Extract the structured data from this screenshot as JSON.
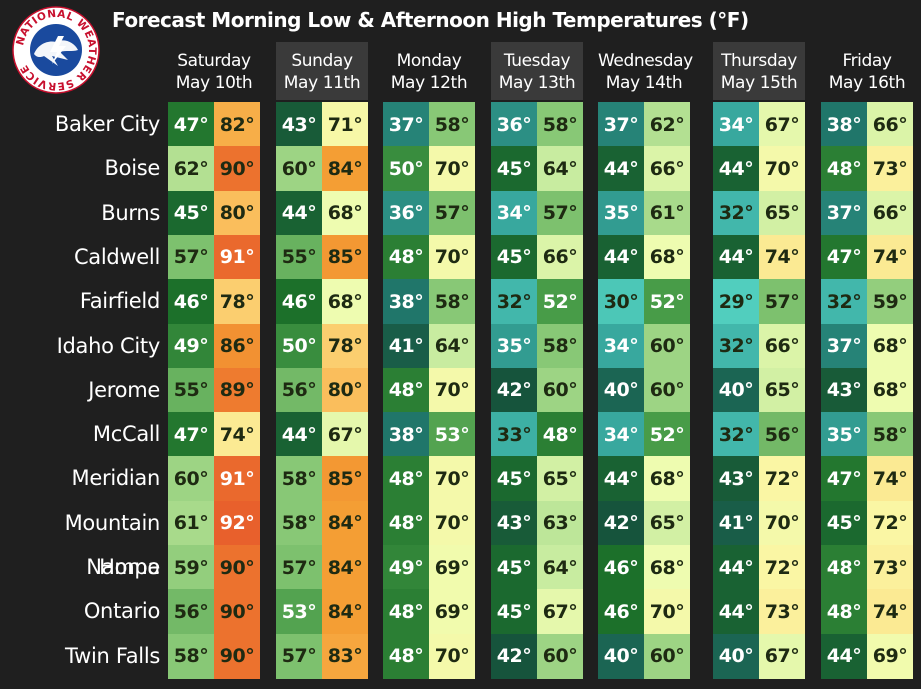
{
  "title": "Forecast Morning Low & Afternoon High Temperatures (°F)",
  "logo": {
    "ring_text": "NATIONAL WEATHER SERVICE"
  },
  "days": [
    {
      "weekday": "Saturday",
      "date": "May 10th"
    },
    {
      "weekday": "Sunday",
      "date": "May 11th"
    },
    {
      "weekday": "Monday",
      "date": "May 12th"
    },
    {
      "weekday": "Tuesday",
      "date": "May 13th"
    },
    {
      "weekday": "Wednesday",
      "date": "May 14th"
    },
    {
      "weekday": "Thursday",
      "date": "May 15th"
    },
    {
      "weekday": "Friday",
      "date": "May 16th"
    }
  ],
  "rows": [
    {
      "city": "Baker City",
      "temps": [
        [
          47,
          82
        ],
        [
          43,
          71
        ],
        [
          37,
          58
        ],
        [
          36,
          58
        ],
        [
          37,
          62
        ],
        [
          34,
          67
        ],
        [
          38,
          66
        ]
      ]
    },
    {
      "city": "Boise",
      "temps": [
        [
          62,
          90
        ],
        [
          60,
          84
        ],
        [
          50,
          70
        ],
        [
          45,
          64
        ],
        [
          44,
          66
        ],
        [
          44,
          70
        ],
        [
          48,
          73
        ]
      ]
    },
    {
      "city": "Burns",
      "temps": [
        [
          45,
          80
        ],
        [
          44,
          68
        ],
        [
          36,
          57
        ],
        [
          34,
          57
        ],
        [
          35,
          61
        ],
        [
          32,
          65
        ],
        [
          37,
          66
        ]
      ]
    },
    {
      "city": "Caldwell",
      "temps": [
        [
          57,
          91
        ],
        [
          55,
          85
        ],
        [
          48,
          70
        ],
        [
          45,
          66
        ],
        [
          44,
          68
        ],
        [
          44,
          74
        ],
        [
          47,
          74
        ]
      ]
    },
    {
      "city": "Fairfield",
      "temps": [
        [
          46,
          78
        ],
        [
          46,
          68
        ],
        [
          38,
          58
        ],
        [
          32,
          52
        ],
        [
          30,
          52
        ],
        [
          29,
          57
        ],
        [
          32,
          59
        ]
      ]
    },
    {
      "city": "Idaho City",
      "temps": [
        [
          49,
          86
        ],
        [
          50,
          78
        ],
        [
          41,
          64
        ],
        [
          35,
          58
        ],
        [
          34,
          60
        ],
        [
          32,
          66
        ],
        [
          37,
          68
        ]
      ]
    },
    {
      "city": "Jerome",
      "temps": [
        [
          55,
          89
        ],
        [
          56,
          80
        ],
        [
          48,
          70
        ],
        [
          42,
          60
        ],
        [
          40,
          60
        ],
        [
          40,
          65
        ],
        [
          43,
          68
        ]
      ]
    },
    {
      "city": "McCall",
      "temps": [
        [
          47,
          74
        ],
        [
          44,
          67
        ],
        [
          38,
          53
        ],
        [
          33,
          48
        ],
        [
          34,
          52
        ],
        [
          32,
          56
        ],
        [
          35,
          58
        ]
      ]
    },
    {
      "city": "Meridian",
      "temps": [
        [
          60,
          91
        ],
        [
          58,
          85
        ],
        [
          48,
          70
        ],
        [
          45,
          65
        ],
        [
          44,
          68
        ],
        [
          43,
          72
        ],
        [
          47,
          74
        ]
      ]
    },
    {
      "city": "Mountain Home",
      "temps": [
        [
          61,
          92
        ],
        [
          58,
          84
        ],
        [
          48,
          70
        ],
        [
          43,
          63
        ],
        [
          42,
          65
        ],
        [
          41,
          70
        ],
        [
          45,
          72
        ]
      ]
    },
    {
      "city": "Nampa",
      "temps": [
        [
          59,
          90
        ],
        [
          57,
          84
        ],
        [
          49,
          69
        ],
        [
          45,
          64
        ],
        [
          46,
          68
        ],
        [
          44,
          72
        ],
        [
          48,
          73
        ]
      ]
    },
    {
      "city": "Ontario",
      "temps": [
        [
          56,
          90
        ],
        [
          53,
          84
        ],
        [
          48,
          69
        ],
        [
          45,
          67
        ],
        [
          46,
          70
        ],
        [
          44,
          73
        ],
        [
          48,
          74
        ]
      ]
    },
    {
      "city": "Twin Falls",
      "temps": [
        [
          58,
          90
        ],
        [
          57,
          83
        ],
        [
          48,
          70
        ],
        [
          42,
          60
        ],
        [
          40,
          60
        ],
        [
          40,
          67
        ],
        [
          44,
          69
        ]
      ]
    }
  ],
  "degree_symbol": "°",
  "colors": {
    "background": "#1f1f1f",
    "alt_column": "#3a3a3a"
  }
}
